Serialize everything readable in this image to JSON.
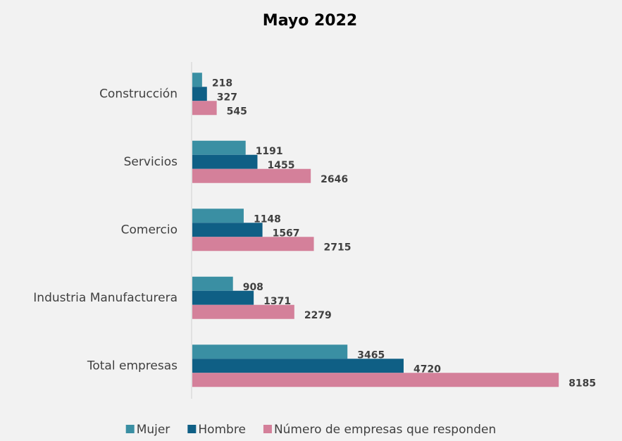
{
  "chart_data": {
    "type": "hbar",
    "title": "Mayo 2022",
    "categories": [
      "Construcción",
      "Servicios",
      "Comercio",
      "Industria Manufacturera",
      "Total empresas"
    ],
    "series": [
      {
        "name": "Mujer",
        "color": "#3a8fa3",
        "values": [
          218,
          1191,
          1148,
          908,
          3465
        ]
      },
      {
        "name": "Hombre",
        "color": "#0f5f85",
        "values": [
          327,
          1455,
          1567,
          1371,
          4720
        ]
      },
      {
        "name": "Número de empresas que responden",
        "color": "#d4809a",
        "values": [
          545,
          2646,
          2715,
          2279,
          8185
        ]
      }
    ],
    "xlim": [
      0,
      9000
    ]
  }
}
